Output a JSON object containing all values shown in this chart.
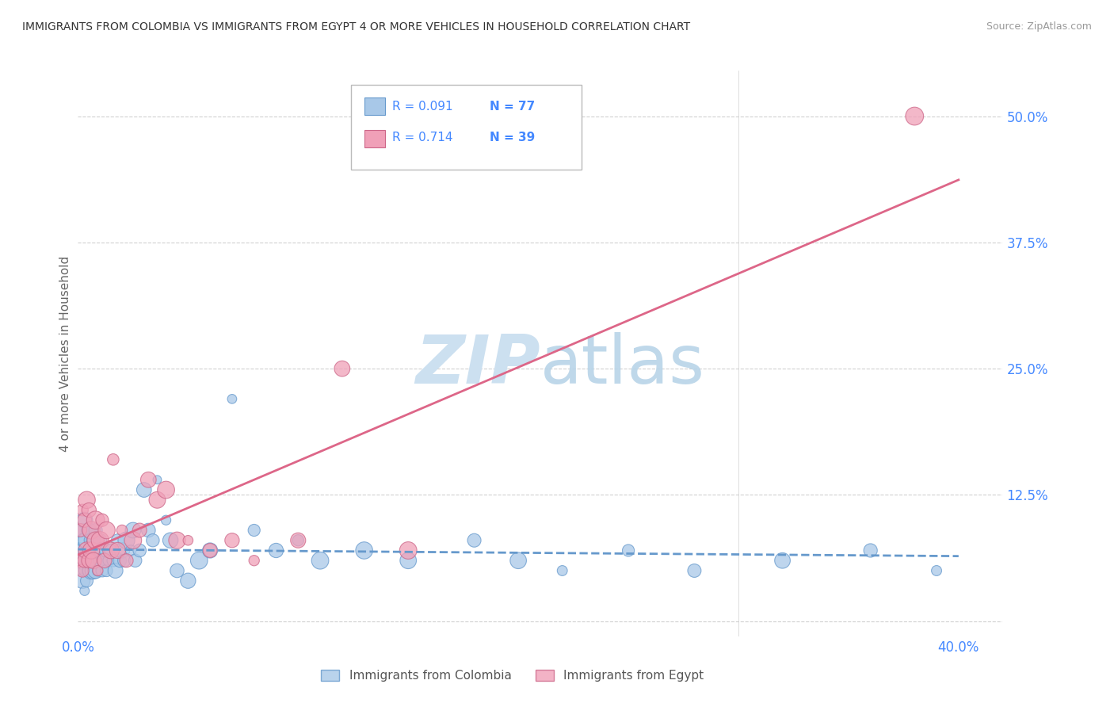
{
  "title": "IMMIGRANTS FROM COLOMBIA VS IMMIGRANTS FROM EGYPT 4 OR MORE VEHICLES IN HOUSEHOLD CORRELATION CHART",
  "source": "Source: ZipAtlas.com",
  "ylabel": "4 or more Vehicles in Household",
  "xlim": [
    0.0,
    0.42
  ],
  "ylim": [
    -0.015,
    0.545
  ],
  "xtick_positions": [
    0.0,
    0.1,
    0.2,
    0.3,
    0.4
  ],
  "xtick_labels": [
    "0.0%",
    "",
    "",
    "",
    "40.0%"
  ],
  "ytick_positions": [
    0.0,
    0.125,
    0.25,
    0.375,
    0.5
  ],
  "ytick_labels": [
    "",
    "12.5%",
    "25.0%",
    "37.5%",
    "50.0%"
  ],
  "grid_color": "#d0d0d0",
  "background_color": "#ffffff",
  "colombia_color": "#a8c8e8",
  "colombia_edge_color": "#6699cc",
  "egypt_color": "#f0a0b8",
  "egypt_edge_color": "#cc6688",
  "colombia_line_color": "#6699cc",
  "egypt_line_color": "#dd6688",
  "legend_R_colombia": "R = 0.091",
  "legend_N_colombia": "N = 77",
  "legend_R_egypt": "R = 0.714",
  "legend_N_egypt": "N = 39",
  "tick_label_color": "#4488ff",
  "watermark_color": "#cce0f0",
  "colombia_x": [
    0.001,
    0.001,
    0.001,
    0.002,
    0.002,
    0.002,
    0.002,
    0.003,
    0.003,
    0.003,
    0.003,
    0.003,
    0.004,
    0.004,
    0.004,
    0.004,
    0.004,
    0.005,
    0.005,
    0.005,
    0.005,
    0.006,
    0.006,
    0.006,
    0.007,
    0.007,
    0.007,
    0.008,
    0.008,
    0.008,
    0.009,
    0.009,
    0.01,
    0.01,
    0.011,
    0.011,
    0.012,
    0.013,
    0.013,
    0.014,
    0.015,
    0.016,
    0.017,
    0.018,
    0.019,
    0.02,
    0.021,
    0.022,
    0.024,
    0.025,
    0.026,
    0.028,
    0.03,
    0.032,
    0.034,
    0.036,
    0.04,
    0.042,
    0.045,
    0.05,
    0.055,
    0.06,
    0.07,
    0.08,
    0.09,
    0.1,
    0.11,
    0.13,
    0.15,
    0.18,
    0.2,
    0.22,
    0.25,
    0.28,
    0.32,
    0.36,
    0.39
  ],
  "colombia_y": [
    0.05,
    0.07,
    0.09,
    0.04,
    0.06,
    0.07,
    0.09,
    0.03,
    0.05,
    0.06,
    0.08,
    0.1,
    0.04,
    0.06,
    0.07,
    0.08,
    0.09,
    0.05,
    0.06,
    0.07,
    0.09,
    0.05,
    0.07,
    0.08,
    0.05,
    0.06,
    0.08,
    0.05,
    0.06,
    0.09,
    0.05,
    0.07,
    0.06,
    0.08,
    0.05,
    0.07,
    0.06,
    0.05,
    0.07,
    0.06,
    0.07,
    0.06,
    0.05,
    0.08,
    0.06,
    0.07,
    0.06,
    0.08,
    0.07,
    0.09,
    0.06,
    0.07,
    0.13,
    0.09,
    0.08,
    0.14,
    0.1,
    0.08,
    0.05,
    0.04,
    0.06,
    0.07,
    0.22,
    0.09,
    0.07,
    0.08,
    0.06,
    0.07,
    0.06,
    0.08,
    0.06,
    0.05,
    0.07,
    0.05,
    0.06,
    0.07,
    0.05
  ],
  "egypt_x": [
    0.001,
    0.001,
    0.002,
    0.002,
    0.003,
    0.003,
    0.004,
    0.004,
    0.005,
    0.005,
    0.006,
    0.006,
    0.007,
    0.008,
    0.008,
    0.009,
    0.01,
    0.011,
    0.012,
    0.013,
    0.015,
    0.016,
    0.018,
    0.02,
    0.022,
    0.025,
    0.028,
    0.032,
    0.036,
    0.04,
    0.045,
    0.05,
    0.06,
    0.07,
    0.08,
    0.1,
    0.12,
    0.15,
    0.38
  ],
  "egypt_y": [
    0.06,
    0.09,
    0.05,
    0.11,
    0.06,
    0.1,
    0.07,
    0.12,
    0.06,
    0.11,
    0.07,
    0.09,
    0.06,
    0.08,
    0.1,
    0.05,
    0.08,
    0.1,
    0.06,
    0.09,
    0.07,
    0.16,
    0.07,
    0.09,
    0.06,
    0.08,
    0.09,
    0.14,
    0.12,
    0.13,
    0.08,
    0.08,
    0.07,
    0.08,
    0.06,
    0.08,
    0.25,
    0.07,
    0.5
  ]
}
